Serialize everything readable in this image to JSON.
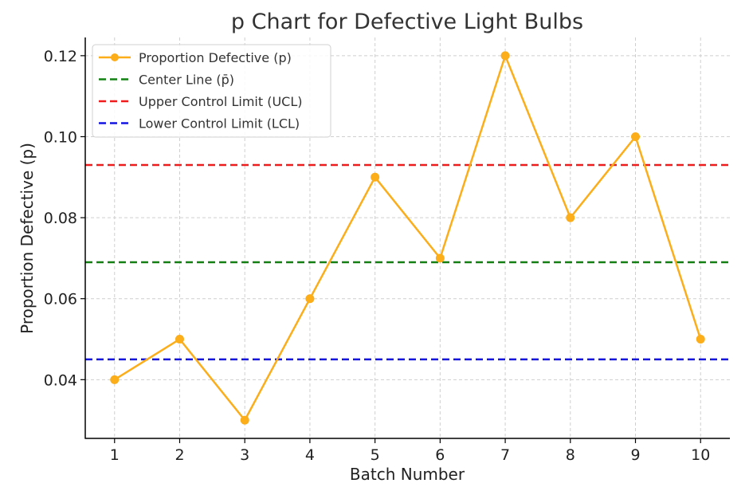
{
  "chart_data": {
    "type": "line",
    "title": "p Chart for Defective Light Bulbs",
    "xlabel": "Batch Number",
    "ylabel": "Proportion Defective (p)",
    "x": [
      1,
      2,
      3,
      4,
      5,
      6,
      7,
      8,
      9,
      10
    ],
    "x_tick_labels": [
      "1",
      "2",
      "3",
      "4",
      "5",
      "6",
      "7",
      "8",
      "9",
      "10"
    ],
    "xlim": [
      0.55,
      10.45
    ],
    "ylim": [
      0.0255,
      0.1245
    ],
    "y_ticks": [
      0.04,
      0.06,
      0.08,
      0.1,
      0.12
    ],
    "y_tick_labels": [
      "0.04",
      "0.06",
      "0.08",
      "0.10",
      "0.12"
    ],
    "grid": true,
    "legend_position": "top-left",
    "series": [
      {
        "name": "Proportion Defective (p)",
        "values": [
          0.04,
          0.05,
          0.03,
          0.06,
          0.09,
          0.07,
          0.12,
          0.08,
          0.1,
          0.05
        ],
        "color": "#fbad1a",
        "style": "solid",
        "marker": "circle"
      }
    ],
    "reference_lines": [
      {
        "name": "Center Line (p̄)",
        "value": 0.069,
        "color": "#128012",
        "style": "dashed"
      },
      {
        "name": "Upper Control Limit (UCL)",
        "value": 0.093,
        "color": "#ee1c1c",
        "style": "dashed"
      },
      {
        "name": "Lower Control Limit (LCL)",
        "value": 0.045,
        "color": "#1515e0",
        "style": "dashed"
      }
    ]
  }
}
